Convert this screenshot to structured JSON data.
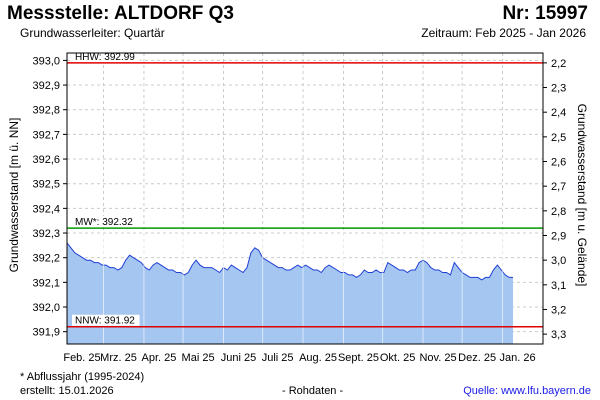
{
  "header": {
    "title": "Messstelle: ALTDORF Q3",
    "nr": "Nr: 15997",
    "subtitle": "Grundwasserleiter: Quartär",
    "period": "Zeitraum: Feb 2025 - Jan 2026"
  },
  "footer": {
    "footnote": "* Abflussjahr (1995-2024)",
    "created": "erstellt:  15.01.2026",
    "rawdata": "- Rohdaten -",
    "source": "Quelle:  www.lfu.bayern.de"
  },
  "colors": {
    "fill": "#a4c6f0",
    "line": "#1f3fd6",
    "hhw": "#e00000",
    "mw": "#009900",
    "nnw": "#e00000",
    "grid": "#cccccc"
  },
  "chart_data": {
    "type": "area",
    "ylabel": "Grundwasserstand [m ü. NN]",
    "ylabel_right": "Grundwasserstand [m u. Gelände]",
    "ylim": [
      391.85,
      393.03
    ],
    "yticks": [
      391.9,
      392.0,
      392.1,
      392.2,
      392.3,
      392.4,
      392.5,
      392.6,
      392.7,
      392.8,
      392.9,
      393.0
    ],
    "ytick_labels": [
      "391,9",
      "392,0",
      "392,1",
      "392,2",
      "392,3",
      "392,4",
      "392,5",
      "392,6",
      "392,7",
      "392,8",
      "392,9",
      "393,0"
    ],
    "y2ticks": [
      3.3,
      3.2,
      3.1,
      3.0,
      2.9,
      2.8,
      2.7,
      2.6,
      2.5,
      2.4,
      2.3,
      2.2
    ],
    "y2tick_labels": [
      "3,3",
      "3,2",
      "3,1",
      "3,0",
      "2,9",
      "2,8",
      "2,7",
      "2,6",
      "2,5",
      "2,4",
      "2,3",
      "2,2"
    ],
    "y2_offset": 395.19,
    "xlim_days": [
      0,
      365
    ],
    "x_months": [
      {
        "label": "Feb. 25",
        "day": 0
      },
      {
        "label": "Mrz. 25",
        "day": 28
      },
      {
        "label": "Apr. 25",
        "day": 59
      },
      {
        "label": "Mai 25",
        "day": 89
      },
      {
        "label": "Juni 25",
        "day": 120
      },
      {
        "label": "Juli 25",
        "day": 150
      },
      {
        "label": "Aug. 25",
        "day": 181
      },
      {
        "label": "Sept. 25",
        "day": 212
      },
      {
        "label": "Okt. 25",
        "day": 242
      },
      {
        "label": "Nov. 25",
        "day": 273
      },
      {
        "label": "Dez. 25",
        "day": 303
      },
      {
        "label": "Jan. 26",
        "day": 334
      }
    ],
    "reference_lines": [
      {
        "label": "HHW: 392.99",
        "value": 392.99,
        "color": "#e00000"
      },
      {
        "label": "MW*: 392.32",
        "value": 392.32,
        "color": "#009900"
      },
      {
        "label": "NNW: 391.92",
        "value": 391.92,
        "color": "#e00000"
      }
    ],
    "series": [
      {
        "x": [
          0,
          3,
          6,
          9,
          12,
          15,
          18,
          21,
          24,
          27,
          30,
          33,
          36,
          39,
          42,
          45,
          48,
          51,
          54,
          57,
          60,
          63,
          66,
          69,
          72,
          75,
          78,
          81,
          84,
          87,
          90,
          93,
          96,
          99,
          102,
          105,
          108,
          111,
          114,
          117,
          120,
          123,
          126,
          129,
          132,
          135,
          138,
          141,
          144,
          147,
          150,
          153,
          156,
          159,
          162,
          165,
          168,
          171,
          174,
          177,
          180,
          183,
          186,
          189,
          192,
          195,
          198,
          201,
          204,
          207,
          210,
          213,
          216,
          219,
          222,
          225,
          228,
          231,
          234,
          237,
          240,
          243,
          246,
          249,
          252,
          255,
          258,
          261,
          264,
          267,
          270,
          273,
          276,
          279,
          282,
          285,
          288,
          291,
          294,
          297,
          300,
          303,
          306,
          309,
          312,
          315,
          318,
          321,
          324,
          327,
          330,
          333,
          336,
          339,
          342
        ],
        "y": [
          392.26,
          392.24,
          392.22,
          392.21,
          392.2,
          392.19,
          392.19,
          392.18,
          392.18,
          392.17,
          392.17,
          392.16,
          392.16,
          392.15,
          392.16,
          392.19,
          392.21,
          392.2,
          392.19,
          392.18,
          392.16,
          392.15,
          392.17,
          392.18,
          392.17,
          392.16,
          392.15,
          392.15,
          392.14,
          392.14,
          392.13,
          392.14,
          392.17,
          392.19,
          392.17,
          392.16,
          392.16,
          392.16,
          392.15,
          392.14,
          392.16,
          392.15,
          392.17,
          392.16,
          392.15,
          392.14,
          392.16,
          392.22,
          392.24,
          392.23,
          392.2,
          392.19,
          392.18,
          392.17,
          392.16,
          392.16,
          392.15,
          392.15,
          392.16,
          392.17,
          392.16,
          392.17,
          392.16,
          392.15,
          392.15,
          392.14,
          392.16,
          392.17,
          392.16,
          392.15,
          392.14,
          392.14,
          392.13,
          392.13,
          392.12,
          392.13,
          392.15,
          392.14,
          392.14,
          392.15,
          392.14,
          392.14,
          392.18,
          392.17,
          392.16,
          392.15,
          392.15,
          392.14,
          392.15,
          392.15,
          392.18,
          392.19,
          392.18,
          392.16,
          392.15,
          392.15,
          392.14,
          392.14,
          392.13,
          392.18,
          392.16,
          392.14,
          392.13,
          392.12,
          392.12,
          392.12,
          392.11,
          392.12,
          392.12,
          392.15,
          392.17,
          392.15,
          392.13,
          392.12,
          392.12
        ]
      }
    ]
  }
}
